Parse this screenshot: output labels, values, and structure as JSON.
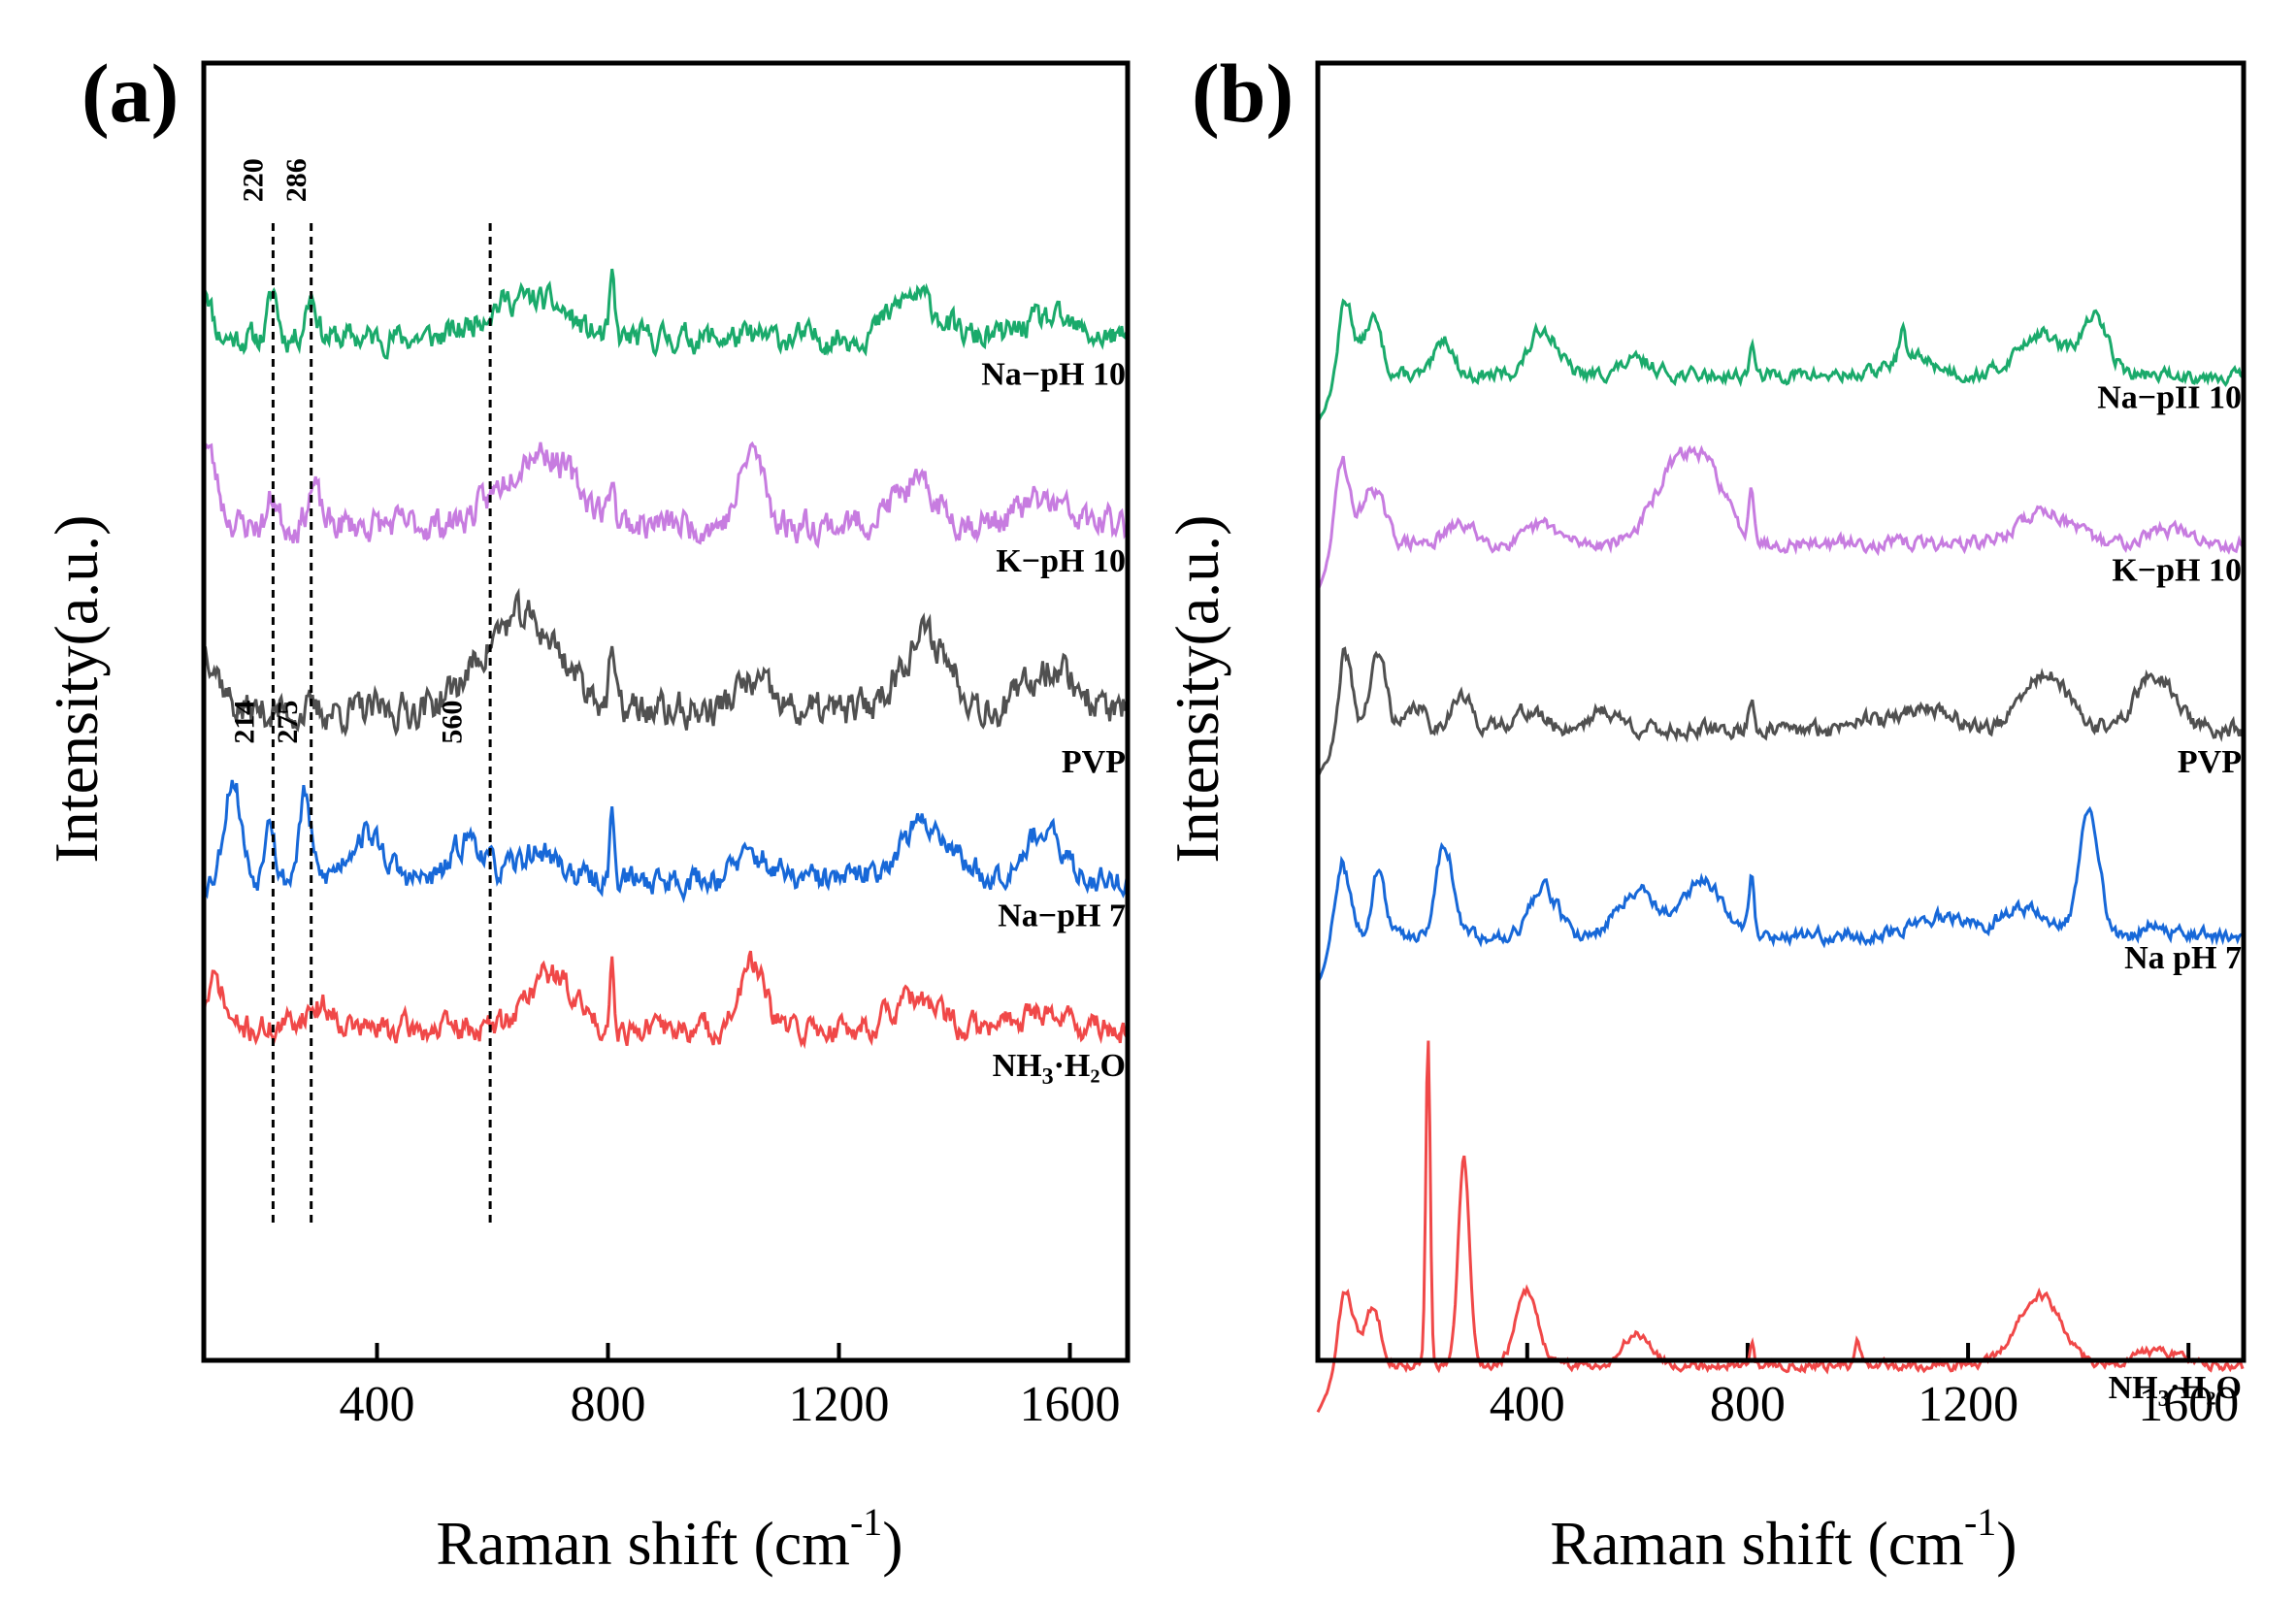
{
  "chart_data": [
    {
      "panel_label": "(a)",
      "type": "line",
      "xlabel": "Raman shift",
      "xlabel_unit": "(cm",
      "xlabel_sup": "-1",
      "xlabel_close": ")",
      "ylabel": "Intensity(a.u.)",
      "xlim": [
        100,
        1700
      ],
      "xticks": [
        400,
        800,
        1200,
        1600
      ],
      "dashed_lines_x": [
        220,
        286,
        596
      ],
      "annotations": [
        {
          "text": "220",
          "x": 215,
          "series": "Na-pH 10"
        },
        {
          "text": "286",
          "x": 290,
          "series": "Na-pH 10"
        },
        {
          "text": "214",
          "x": 200,
          "series": "Na-pH 7"
        },
        {
          "text": "275",
          "x": 275,
          "series": "Na-pH 7"
        },
        {
          "text": "560",
          "x": 560,
          "series": "Na-pH 7"
        }
      ],
      "series": [
        {
          "name": "Na-pH 10",
          "label_main": "Na−pH 10",
          "label_sub": "",
          "label_tail": "",
          "color": "#1aaa6b",
          "base": 0.18,
          "noise": 0.012,
          "seed": 11,
          "peaks": [
            [
              100,
              0.06,
              12
            ],
            [
              220,
              0.05,
              8
            ],
            [
              286,
              0.045,
              10
            ],
            [
              620,
              0.035,
              45
            ],
            [
              700,
              0.03,
              40
            ],
            [
              807,
              0.06,
              4
            ],
            [
              1330,
              0.045,
              40
            ],
            [
              1560,
              0.02,
              40
            ]
          ]
        },
        {
          "name": "K-pH 10",
          "label_main": "K−pH 10",
          "label_sub": "",
          "label_tail": "",
          "color": "#c77ce0",
          "base": 0.38,
          "noise": 0.014,
          "seed": 23,
          "peaks": [
            [
              100,
              0.09,
              20
            ],
            [
              220,
              0.03,
              8
            ],
            [
              290,
              0.04,
              10
            ],
            [
              680,
              0.08,
              60
            ],
            [
              807,
              0.05,
              4
            ],
            [
              1050,
              0.08,
              20
            ],
            [
              1330,
              0.04,
              40
            ],
            [
              1550,
              0.025,
              40
            ]
          ]
        },
        {
          "name": "PVP",
          "label_main": "PVP",
          "label_sub": "",
          "label_tail": "",
          "color": "#505050",
          "base": 0.58,
          "noise": 0.016,
          "seed": 37,
          "peaks": [
            [
              100,
              0.07,
              25
            ],
            [
              650,
              0.1,
              70
            ],
            [
              807,
              0.06,
              4
            ],
            [
              1050,
              0.03,
              30
            ],
            [
              1350,
              0.08,
              45
            ],
            [
              1570,
              0.05,
              40
            ]
          ]
        },
        {
          "name": "Na-pH 7",
          "label_main": "Na−pH 7",
          "label_sub": "",
          "label_tail": "",
          "color": "#1768d8",
          "base": 0.76,
          "noise": 0.012,
          "seed": 53,
          "peaks": [
            [
              150,
              0.11,
              14
            ],
            [
              214,
              0.08,
              8
            ],
            [
              275,
              0.09,
              10
            ],
            [
              380,
              0.05,
              30
            ],
            [
              560,
              0.045,
              25
            ],
            [
              680,
              0.03,
              35
            ],
            [
              807,
              0.07,
              4
            ],
            [
              1050,
              0.025,
              30
            ],
            [
              1350,
              0.06,
              45
            ],
            [
              1550,
              0.05,
              35
            ]
          ]
        },
        {
          "name": "NH3·H2O",
          "label_main": "NH",
          "label_sub": "3",
          "label_tail": "·H₂O",
          "color": "#f04848",
          "base": 0.92,
          "noise": 0.012,
          "seed": 71,
          "peaks": [
            [
              120,
              0.05,
              15
            ],
            [
              300,
              0.025,
              30
            ],
            [
              700,
              0.06,
              40
            ],
            [
              807,
              0.07,
              4
            ],
            [
              1050,
              0.07,
              20
            ],
            [
              1330,
              0.03,
              40
            ],
            [
              1550,
              0.02,
              40
            ]
          ]
        }
      ]
    },
    {
      "panel_label": "(b)",
      "type": "line",
      "xlabel": "Raman shift",
      "xlabel_unit": "(cm",
      "xlabel_sup": "-1",
      "xlabel_close": ")",
      "ylabel": "Intensity(a.u.)",
      "xlim": [
        20,
        1700
      ],
      "xticks": [
        400,
        800,
        1200,
        1600
      ],
      "series": [
        {
          "name": "Na-pH 10",
          "label_main": "Na−pII 10",
          "label_sub": "",
          "label_tail": "",
          "color": "#1aaa6b",
          "base": 0.22,
          "noise": 0.006,
          "seed": 13,
          "rise": true,
          "peaks": [
            [
              70,
              0.08,
              15
            ],
            [
              120,
              0.06,
              15
            ],
            [
              250,
              0.04,
              15
            ],
            [
              430,
              0.05,
              25
            ],
            [
              600,
              0.015,
              30
            ],
            [
              807,
              0.035,
              4
            ],
            [
              1080,
              0.035,
              5
            ],
            [
              1100,
              0.02,
              40
            ],
            [
              1330,
              0.045,
              40
            ],
            [
              1430,
              0.06,
              25
            ]
          ]
        },
        {
          "name": "K-pH 10",
          "label_main": "K−pH 10",
          "label_sub": "",
          "label_tail": "",
          "color": "#c77ce0",
          "base": 0.4,
          "noise": 0.006,
          "seed": 29,
          "rise": true,
          "peaks": [
            [
              60,
              0.1,
              15
            ],
            [
              120,
              0.06,
              20
            ],
            [
              280,
              0.02,
              25
            ],
            [
              430,
              0.02,
              25
            ],
            [
              680,
              0.09,
              45
            ],
            [
              740,
              0.04,
              30
            ],
            [
              807,
              0.06,
              5
            ],
            [
              1340,
              0.035,
              45
            ],
            [
              1560,
              0.015,
              40
            ]
          ]
        },
        {
          "name": "PVP",
          "label_main": "PVP",
          "label_sub": "",
          "label_tail": "",
          "color": "#505050",
          "base": 0.6,
          "noise": 0.007,
          "seed": 41,
          "rise": true,
          "peaks": [
            [
              70,
              0.08,
              12
            ],
            [
              130,
              0.08,
              15
            ],
            [
              200,
              0.025,
              15
            ],
            [
              280,
              0.035,
              20
            ],
            [
              400,
              0.02,
              30
            ],
            [
              540,
              0.02,
              30
            ],
            [
              807,
              0.035,
              5
            ],
            [
              1000,
              0.015,
              20
            ],
            [
              1120,
              0.025,
              50
            ],
            [
              1340,
              0.06,
              40
            ],
            [
              1540,
              0.06,
              35
            ]
          ]
        },
        {
          "name": "Na-pH 7",
          "label_main": "Na  pH 7",
          "label_sub": "",
          "label_tail": "",
          "color": "#1768d8",
          "base": 0.82,
          "noise": 0.006,
          "seed": 59,
          "rise": true,
          "peaks": [
            [
              60,
              0.09,
              15
            ],
            [
              130,
              0.07,
              12
            ],
            [
              250,
              0.1,
              15
            ],
            [
              430,
              0.05,
              25
            ],
            [
              600,
              0.05,
              35
            ],
            [
              720,
              0.06,
              35
            ],
            [
              807,
              0.06,
              5
            ],
            [
              1150,
              0.02,
              50
            ],
            [
              1300,
              0.03,
              40
            ],
            [
              1420,
              0.14,
              18
            ],
            [
              1540,
              0.015,
              20
            ]
          ]
        },
        {
          "name": "NH3·H2O",
          "label_main": "NH",
          "label_sub": "3",
          "label_tail": "·H₂O",
          "color": "#f04848",
          "base": 1.28,
          "noise": 0.004,
          "seed": 83,
          "rise": true,
          "peaks": [
            [
              70,
              0.08,
              15
            ],
            [
              120,
              0.06,
              15
            ],
            [
              220,
              0.35,
              4
            ],
            [
              285,
              0.22,
              10
            ],
            [
              400,
              0.08,
              20
            ],
            [
              600,
              0.035,
              25
            ],
            [
              807,
              0.025,
              4
            ],
            [
              1000,
              0.025,
              5
            ],
            [
              1330,
              0.075,
              40
            ],
            [
              1540,
              0.015,
              40
            ]
          ]
        }
      ]
    }
  ]
}
